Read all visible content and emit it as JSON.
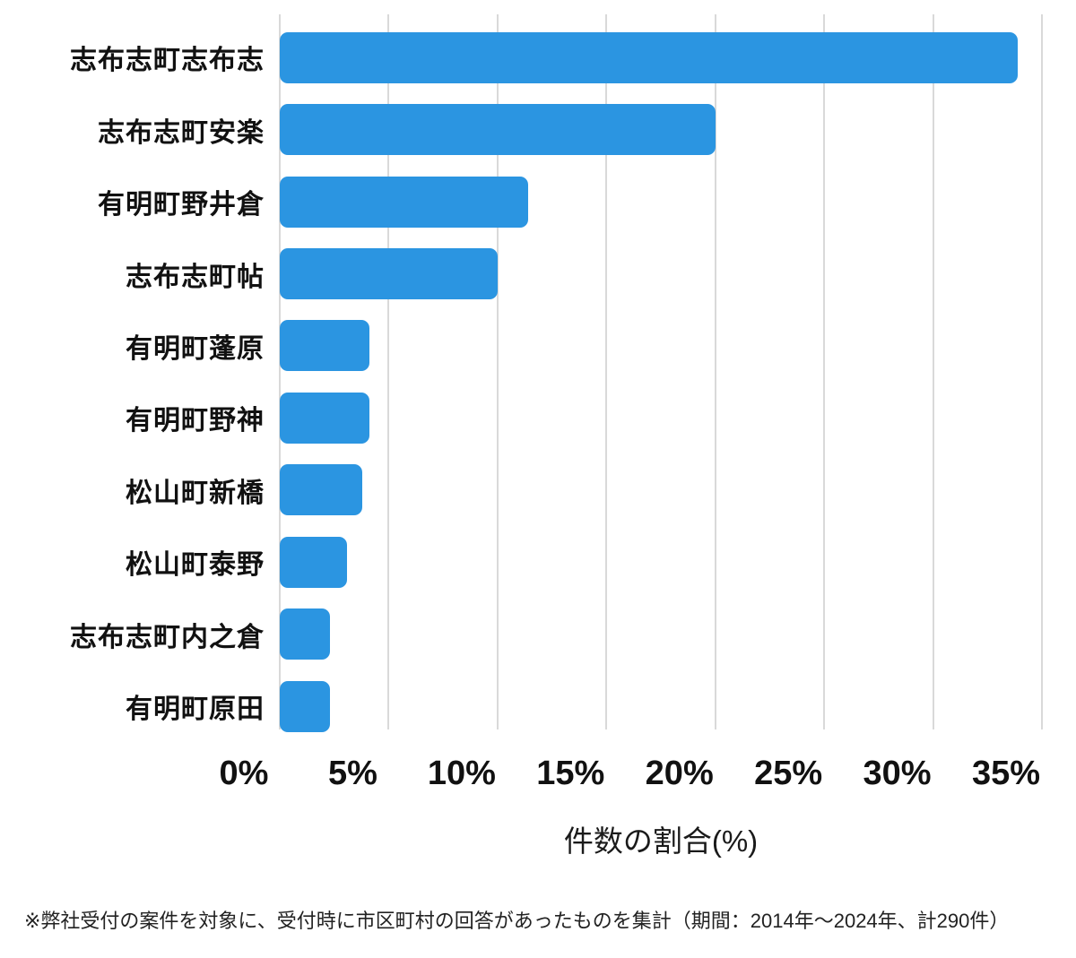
{
  "chart_data": {
    "type": "bar",
    "orientation": "horizontal",
    "title": "",
    "categories": [
      "志布志町志布志",
      "志布志町安楽",
      "有明町野井倉",
      "志布志町帖",
      "有明町蓬原",
      "有明町野神",
      "松山町新橋",
      "松山町泰野",
      "志布志町内之倉",
      "有明町原田"
    ],
    "values": [
      33.9,
      20.0,
      11.4,
      10.0,
      4.1,
      4.1,
      3.8,
      3.1,
      2.3,
      2.3
    ],
    "xlabel": "件数の割合(%)",
    "ylabel": "",
    "xlim": [
      0,
      35
    ],
    "xticks": [
      0,
      5,
      10,
      15,
      20,
      25,
      30,
      35
    ],
    "xtick_labels": [
      "0%",
      "5%",
      "10%",
      "15%",
      "20%",
      "25%",
      "30%",
      "35%"
    ],
    "grid": "vertical",
    "legend": "none",
    "bar_color": "#2b95e1",
    "gridline_color": "#d9d9d9",
    "background_color": "#ffffff"
  },
  "footnote": "※弊社受付の案件を対象に、受付時に市区町村の回答があったものを集計（期間：2014年～2024年、計290件）"
}
